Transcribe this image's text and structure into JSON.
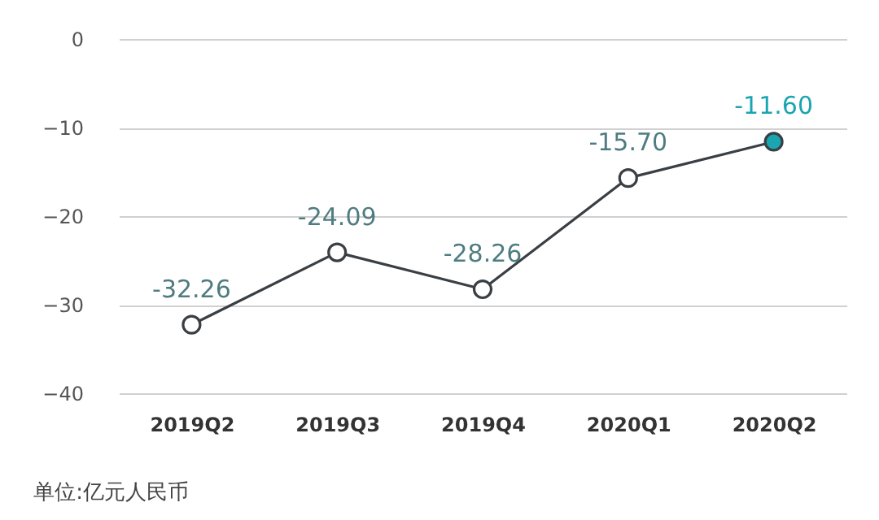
{
  "chart_data": {
    "type": "line",
    "categories": [
      "2019Q2",
      "2019Q3",
      "2019Q4",
      "2020Q1",
      "2020Q2"
    ],
    "series": [
      {
        "color": "#3a3f44",
        "values": [
          -32.26,
          -24.09,
          -28.26,
          -15.7,
          -11.6
        ],
        "colors": [
          "#ffffff",
          "#ffffff",
          "#ffffff",
          "#ffffff",
          "#1aa5b0"
        ],
        "value_labels": [
          "-32.26",
          "-24.09",
          "-28.26",
          "-15.70",
          "-11.60"
        ]
      }
    ],
    "ylim": [
      -40,
      0
    ],
    "yticks": [
      0,
      -10,
      -20,
      -30,
      -40
    ],
    "grid": "y",
    "marker": "circle",
    "annotations": [
      "单位:亿元人民币"
    ]
  }
}
